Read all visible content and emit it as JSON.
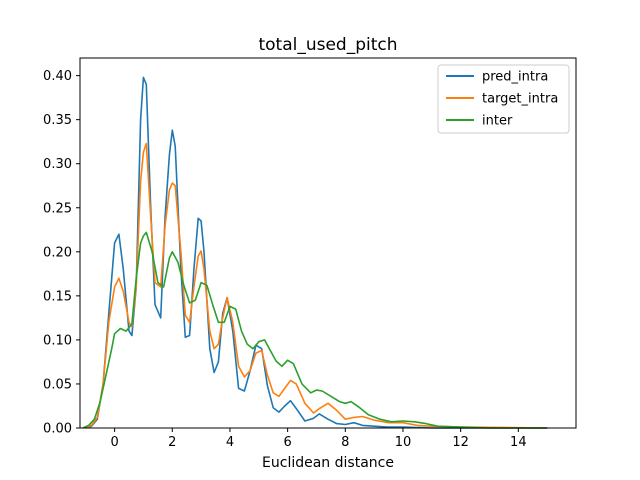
{
  "chart_data": {
    "type": "line",
    "title": "total_used_pitch",
    "xlabel": "Euclidean distance",
    "ylabel": "",
    "xlim": [
      -1.2,
      16.0
    ],
    "ylim": [
      0.0,
      0.42
    ],
    "xticks": [
      0,
      2,
      4,
      6,
      8,
      10,
      12,
      14
    ],
    "yticks": [
      0.0,
      0.05,
      0.1,
      0.15,
      0.2,
      0.25,
      0.3,
      0.35,
      0.4
    ],
    "xtick_labels": [
      "0",
      "2",
      "4",
      "6",
      "8",
      "10",
      "12",
      "14"
    ],
    "ytick_labels": [
      "0.00",
      "0.05",
      "0.10",
      "0.15",
      "0.20",
      "0.25",
      "0.30",
      "0.35",
      "0.40"
    ],
    "legend_position": "top-right",
    "series": [
      {
        "name": "pred_intra",
        "color": "#1f77b4",
        "x": [
          -1.0,
          -0.8,
          -0.6,
          -0.4,
          -0.2,
          0.0,
          0.15,
          0.3,
          0.5,
          0.6,
          0.75,
          0.9,
          1.0,
          1.1,
          1.25,
          1.4,
          1.6,
          1.75,
          1.9,
          2.0,
          2.1,
          2.3,
          2.45,
          2.6,
          2.75,
          2.9,
          3.0,
          3.1,
          3.3,
          3.45,
          3.6,
          3.75,
          3.9,
          4.1,
          4.3,
          4.5,
          4.7,
          4.9,
          5.1,
          5.3,
          5.5,
          5.7,
          5.9,
          6.1,
          6.3,
          6.6,
          6.9,
          7.1,
          7.4,
          7.7,
          8.0,
          8.3,
          8.6,
          9.0,
          9.5,
          10.0,
          11.0,
          15.0
        ],
        "y": [
          0.0,
          0.002,
          0.01,
          0.05,
          0.13,
          0.21,
          0.22,
          0.18,
          0.11,
          0.105,
          0.16,
          0.35,
          0.398,
          0.39,
          0.25,
          0.14,
          0.125,
          0.24,
          0.31,
          0.338,
          0.32,
          0.18,
          0.103,
          0.105,
          0.18,
          0.238,
          0.235,
          0.2,
          0.09,
          0.063,
          0.075,
          0.13,
          0.148,
          0.11,
          0.045,
          0.042,
          0.065,
          0.094,
          0.09,
          0.048,
          0.023,
          0.018,
          0.025,
          0.031,
          0.022,
          0.008,
          0.011,
          0.016,
          0.01,
          0.005,
          0.004,
          0.006,
          0.003,
          0.002,
          0.001,
          0.001,
          0.0,
          0.0
        ]
      },
      {
        "name": "target_intra",
        "color": "#ff7f0e",
        "x": [
          -1.0,
          -0.8,
          -0.6,
          -0.4,
          -0.2,
          0.0,
          0.15,
          0.3,
          0.5,
          0.6,
          0.75,
          0.9,
          1.0,
          1.1,
          1.25,
          1.4,
          1.6,
          1.75,
          1.9,
          2.0,
          2.1,
          2.3,
          2.45,
          2.6,
          2.75,
          2.9,
          3.0,
          3.1,
          3.3,
          3.45,
          3.6,
          3.75,
          3.9,
          4.1,
          4.3,
          4.5,
          4.7,
          4.9,
          5.1,
          5.3,
          5.5,
          5.7,
          5.9,
          6.1,
          6.3,
          6.6,
          6.9,
          7.1,
          7.4,
          7.7,
          8.0,
          8.3,
          8.6,
          9.0,
          9.5,
          10.0,
          10.5,
          11.0,
          12.0,
          15.0
        ],
        "y": [
          0.0,
          0.003,
          0.012,
          0.05,
          0.12,
          0.16,
          0.17,
          0.155,
          0.12,
          0.115,
          0.16,
          0.28,
          0.313,
          0.323,
          0.24,
          0.165,
          0.16,
          0.23,
          0.27,
          0.278,
          0.275,
          0.2,
          0.128,
          0.12,
          0.16,
          0.195,
          0.201,
          0.18,
          0.11,
          0.09,
          0.095,
          0.125,
          0.148,
          0.12,
          0.07,
          0.058,
          0.065,
          0.085,
          0.088,
          0.06,
          0.04,
          0.036,
          0.045,
          0.054,
          0.05,
          0.028,
          0.017,
          0.022,
          0.028,
          0.02,
          0.01,
          0.012,
          0.013,
          0.009,
          0.006,
          0.006,
          0.003,
          0.002,
          0.001,
          0.0
        ]
      },
      {
        "name": "inter",
        "color": "#2ca02c",
        "x": [
          -1.1,
          -0.9,
          -0.7,
          -0.5,
          -0.3,
          -0.1,
          0.0,
          0.2,
          0.4,
          0.6,
          0.75,
          0.9,
          1.0,
          1.1,
          1.3,
          1.5,
          1.7,
          1.9,
          2.0,
          2.2,
          2.4,
          2.6,
          2.8,
          3.0,
          3.2,
          3.4,
          3.6,
          3.8,
          4.0,
          4.2,
          4.4,
          4.6,
          4.8,
          5.0,
          5.2,
          5.4,
          5.6,
          5.8,
          6.0,
          6.2,
          6.5,
          6.8,
          7.0,
          7.2,
          7.5,
          7.8,
          8.0,
          8.2,
          8.5,
          8.8,
          9.2,
          9.6,
          10.0,
          10.4,
          10.8,
          11.2,
          12.0,
          13.0,
          15.0
        ],
        "y": [
          0.0,
          0.003,
          0.01,
          0.03,
          0.06,
          0.09,
          0.107,
          0.113,
          0.11,
          0.118,
          0.17,
          0.21,
          0.218,
          0.222,
          0.2,
          0.165,
          0.16,
          0.193,
          0.2,
          0.188,
          0.162,
          0.142,
          0.145,
          0.165,
          0.162,
          0.14,
          0.12,
          0.12,
          0.138,
          0.135,
          0.11,
          0.095,
          0.09,
          0.098,
          0.1,
          0.088,
          0.076,
          0.07,
          0.077,
          0.073,
          0.05,
          0.04,
          0.043,
          0.042,
          0.036,
          0.03,
          0.028,
          0.03,
          0.023,
          0.015,
          0.01,
          0.007,
          0.008,
          0.007,
          0.005,
          0.002,
          0.001,
          0.0,
          0.0
        ]
      }
    ]
  }
}
